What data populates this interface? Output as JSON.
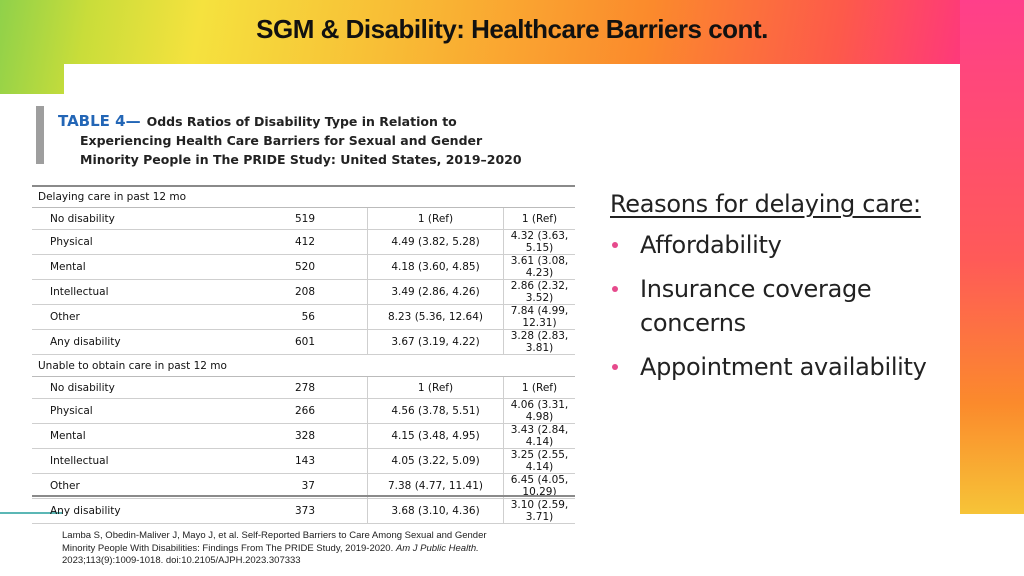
{
  "slide": {
    "title": "SGM & Disability: Healthcare Barriers cont."
  },
  "table": {
    "label": "TABLE 4—",
    "title_line1": "Odds Ratios of Disability Type in Relation to",
    "title_line2": "Experiencing Health Care Barriers for Sexual and Gender",
    "title_line3": "Minority People in The PRIDE Study: United States, 2019–2020",
    "sections": [
      {
        "name": "Delaying care in past 12 mo",
        "rows": [
          {
            "type": "No disability",
            "n": "519",
            "or1": "1 (Ref)",
            "or2": "1 (Ref)"
          },
          {
            "type": "Physical",
            "n": "412",
            "or1": "4.49 (3.82, 5.28)",
            "or2": "4.32 (3.63, 5.15)"
          },
          {
            "type": "Mental",
            "n": "520",
            "or1": "4.18 (3.60, 4.85)",
            "or2": "3.61 (3.08, 4.23)"
          },
          {
            "type": "Intellectual",
            "n": "208",
            "or1": "3.49 (2.86, 4.26)",
            "or2": "2.86 (2.32, 3.52)"
          },
          {
            "type": "Other",
            "n": "56",
            "or1": "8.23 (5.36, 12.64)",
            "or2": "7.84 (4.99, 12.31)"
          },
          {
            "type": "Any disability",
            "n": "601",
            "or1": "3.67 (3.19, 4.22)",
            "or2": "3.28 (2.83, 3.81)"
          }
        ]
      },
      {
        "name": "Unable to obtain care in past 12 mo",
        "rows": [
          {
            "type": "No disability",
            "n": "278",
            "or1": "1 (Ref)",
            "or2": "1 (Ref)"
          },
          {
            "type": "Physical",
            "n": "266",
            "or1": "4.56 (3.78, 5.51)",
            "or2": "4.06 (3.31, 4.98)"
          },
          {
            "type": "Mental",
            "n": "328",
            "or1": "4.15 (3.48, 4.95)",
            "or2": "3.43 (2.84, 4.14)"
          },
          {
            "type": "Intellectual",
            "n": "143",
            "or1": "4.05 (3.22, 5.09)",
            "or2": "3.25 (2.55, 4.14)"
          },
          {
            "type": "Other",
            "n": "37",
            "or1": "7.38 (4.77, 11.41)",
            "or2": "6.45 (4.05, 10.29)"
          },
          {
            "type": "Any disability",
            "n": "373",
            "or1": "3.68 (3.10, 4.36)",
            "or2": "3.10 (2.59, 3.71)"
          }
        ]
      }
    ]
  },
  "reasons": {
    "heading": "Reasons for delaying care:",
    "items": [
      "Affordability",
      "Insurance coverage concerns",
      "Appointment availability"
    ],
    "bullet_color": "#e64a8c"
  },
  "citation": {
    "line1": "Lamba S, Obedin-Maliver J, Mayo J, et al. Self-Reported Barriers to Care Among Sexual and Gender",
    "line2_prefix": "Minority People With Disabilities: Findings From The PRIDE Study, 2019-2020.",
    "journal": "Am J Public Health.",
    "line3": "2023;113(9):1009-1018. doi:10.2105/AJPH.2023.307333"
  }
}
